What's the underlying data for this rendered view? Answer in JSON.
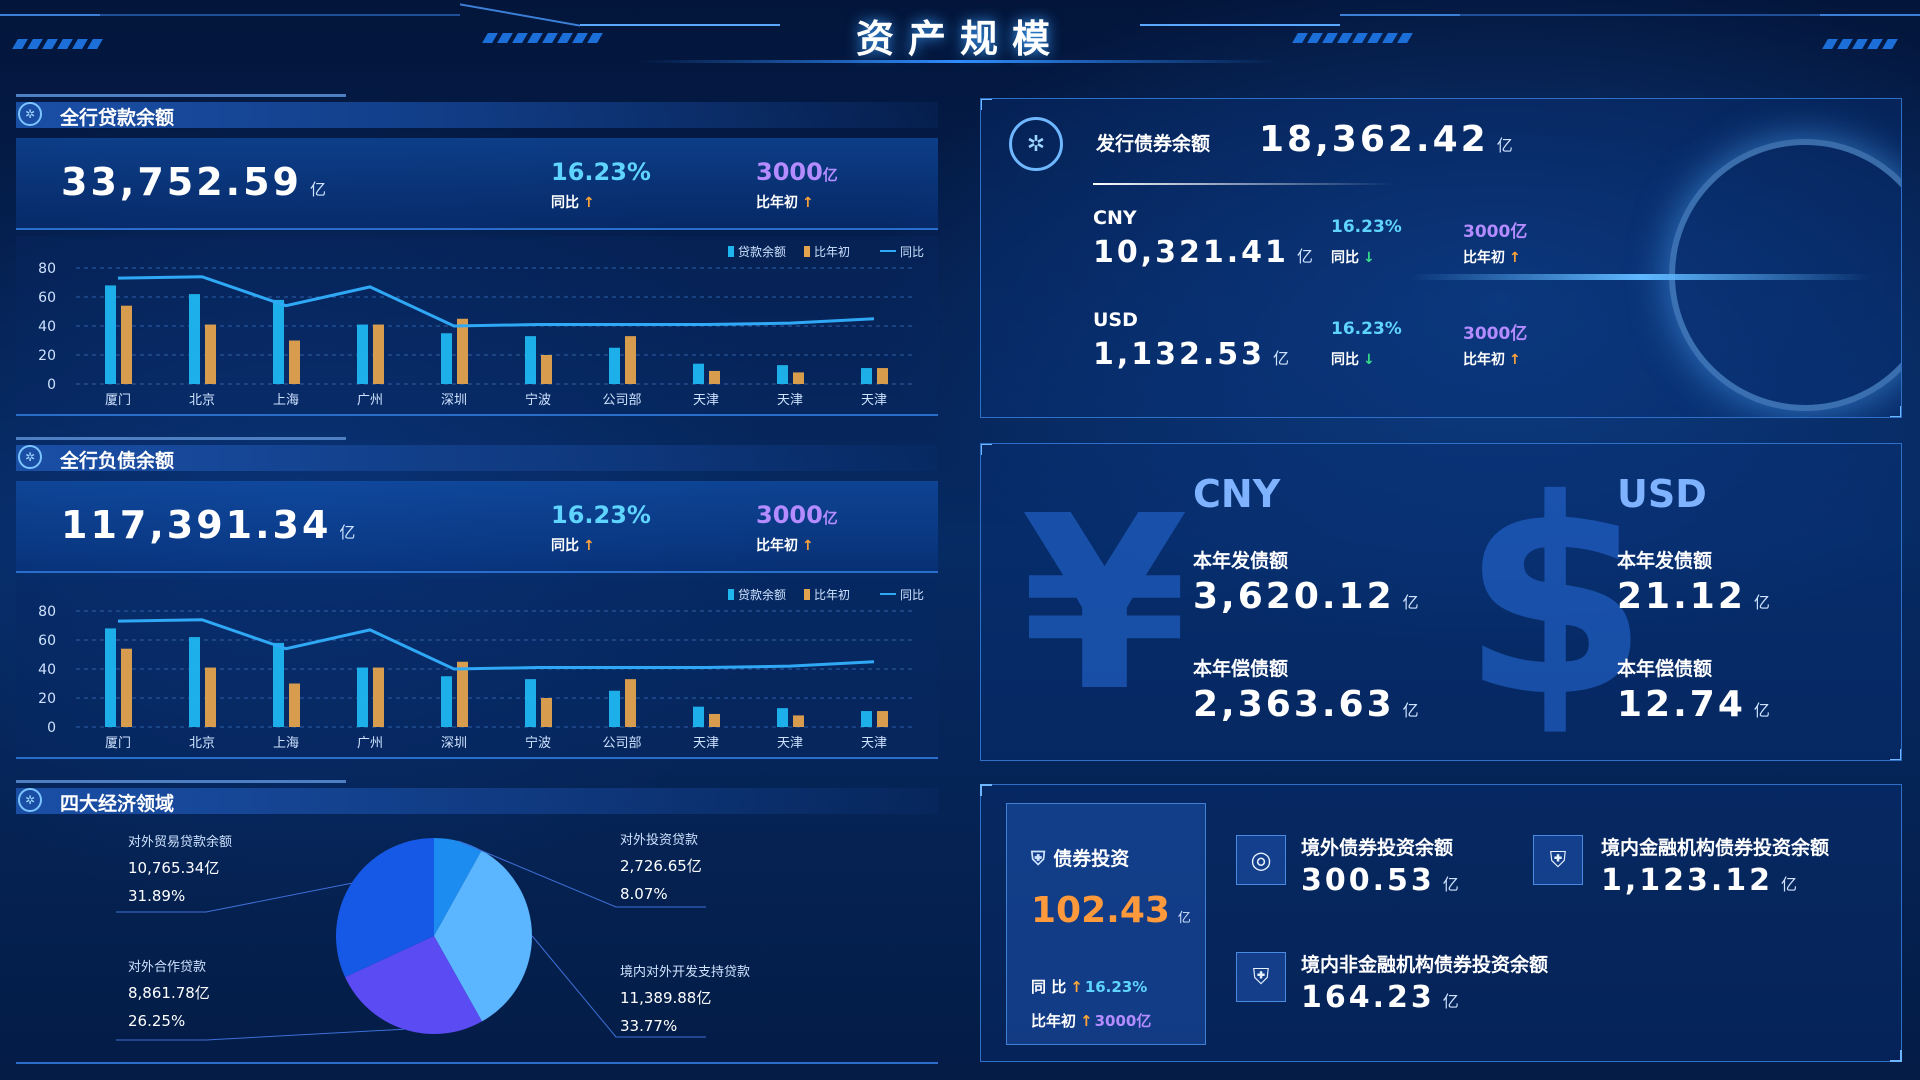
{
  "page_title": "资产规模",
  "loan_section": {
    "title": "全行贷款余额",
    "value": "33,752.59",
    "unit": "亿",
    "yoy_pct": "16.23%",
    "yoy_label": "同比",
    "ytd_amount": "3000",
    "ytd_unit": "亿",
    "ytd_label": "比年初"
  },
  "liability_section": {
    "title": "全行负债余额",
    "value": "117,391.34",
    "unit": "亿",
    "yoy_pct": "16.23%",
    "yoy_label": "同比",
    "ytd_amount": "3000",
    "ytd_unit": "亿",
    "ytd_label": "比年初"
  },
  "economy_section": {
    "title": "四大经济领域"
  },
  "bond_issue": {
    "title": "发行债券余额",
    "value": "18,362.42",
    "unit": "亿",
    "cny": {
      "label": "CNY",
      "value": "10,321.41",
      "unit": "亿",
      "yoy_pct": "16.23%",
      "yoy_label": "同比",
      "ytd": "3000亿",
      "ytd_label": "比年初"
    },
    "usd": {
      "label": "USD",
      "value": "1,132.53",
      "unit": "亿",
      "yoy_pct": "16.23%",
      "yoy_label": "同比",
      "ytd": "3000亿",
      "ytd_label": "比年初"
    }
  },
  "currency_panel": {
    "cny": {
      "label": "CNY",
      "issue_label": "本年发债额",
      "issue_value": "3,620.12",
      "repay_label": "本年偿债额",
      "repay_value": "2,363.63",
      "unit": "亿",
      "glyph": "¥"
    },
    "usd": {
      "label": "USD",
      "issue_label": "本年发债额",
      "issue_value": "21.12",
      "repay_label": "本年偿债额",
      "repay_value": "12.74",
      "unit": "亿",
      "glyph": "$"
    }
  },
  "bond_invest": {
    "title": "债券投资",
    "value": "102.43",
    "unit": "亿",
    "yoy_label": "同  比",
    "yoy_pct": "16.23%",
    "ytd_label": "比年初",
    "ytd": "3000亿",
    "overseas": {
      "label": "境外债券投资余额",
      "value": "300.53",
      "unit": "亿"
    },
    "domestic_fin": {
      "label": "境内金融机构债券投资余额",
      "value": "1,123.12",
      "unit": "亿"
    },
    "domestic_nonfin": {
      "label": "境内非金融机构债券投资余额",
      "value": "164.23",
      "unit": "亿"
    }
  },
  "colors": {
    "bar_balance": "#1fb6f0",
    "bar_ytd": "#e3a24c",
    "line_yoy": "#2fa8f5",
    "pie": [
      "#1c8cf0",
      "#5bb5ff",
      "#5a4cf2",
      "#1659e6"
    ],
    "accent_up": "#ffa43a",
    "accent_down": "#37e08a"
  },
  "chart_data": [
    {
      "type": "bar",
      "legend": [
        "贷款余额",
        "比年初",
        "同比"
      ],
      "categories": [
        "厦门",
        "北京",
        "上海",
        "广州",
        "深圳",
        "宁波",
        "公司部",
        "天津",
        "天津",
        "天津"
      ],
      "series": [
        {
          "name": "贷款余额",
          "type": "bar",
          "values": [
            68,
            62,
            58,
            41,
            35,
            33,
            25,
            14,
            13,
            11
          ]
        },
        {
          "name": "比年初",
          "type": "bar",
          "values": [
            54,
            41,
            30,
            41,
            45,
            20,
            33,
            9,
            8,
            11
          ]
        },
        {
          "name": "同比",
          "type": "line",
          "values": [
            73,
            74,
            54,
            67,
            40,
            41,
            41,
            41,
            42,
            45
          ]
        }
      ],
      "yticks": [
        "0",
        "20",
        "40",
        "60",
        "80"
      ],
      "ylim": [
        0,
        80
      ],
      "legend_position": "top-right"
    },
    {
      "type": "bar",
      "legend": [
        "贷款余额",
        "比年初",
        "同比"
      ],
      "categories": [
        "厦门",
        "北京",
        "上海",
        "广州",
        "深圳",
        "宁波",
        "公司部",
        "天津",
        "天津",
        "天津"
      ],
      "series": [
        {
          "name": "贷款余额",
          "type": "bar",
          "values": [
            68,
            62,
            58,
            41,
            35,
            33,
            25,
            14,
            13,
            11
          ]
        },
        {
          "name": "比年初",
          "type": "bar",
          "values": [
            54,
            41,
            30,
            41,
            45,
            20,
            33,
            9,
            8,
            11
          ]
        },
        {
          "name": "同比",
          "type": "line",
          "values": [
            73,
            74,
            54,
            67,
            40,
            41,
            41,
            41,
            42,
            45
          ]
        }
      ],
      "yticks": [
        "0",
        "20",
        "40",
        "60",
        "80"
      ],
      "ylim": [
        0,
        80
      ],
      "legend_position": "top-right"
    },
    {
      "type": "pie",
      "slices": [
        {
          "name": "对外投资贷款",
          "amount": "2,726.65亿",
          "percent": "8.07%",
          "value": 8.07
        },
        {
          "name": "境内对外开发支持贷款",
          "amount": "11,389.88亿",
          "percent": "33.77%",
          "value": 33.77
        },
        {
          "name": "对外合作贷款",
          "amount": "8,861.78亿",
          "percent": "26.25%",
          "value": 26.25
        },
        {
          "name": "对外贸易贷款余额",
          "amount": "10,765.34亿",
          "percent": "31.89%",
          "value": 31.89
        }
      ]
    }
  ]
}
